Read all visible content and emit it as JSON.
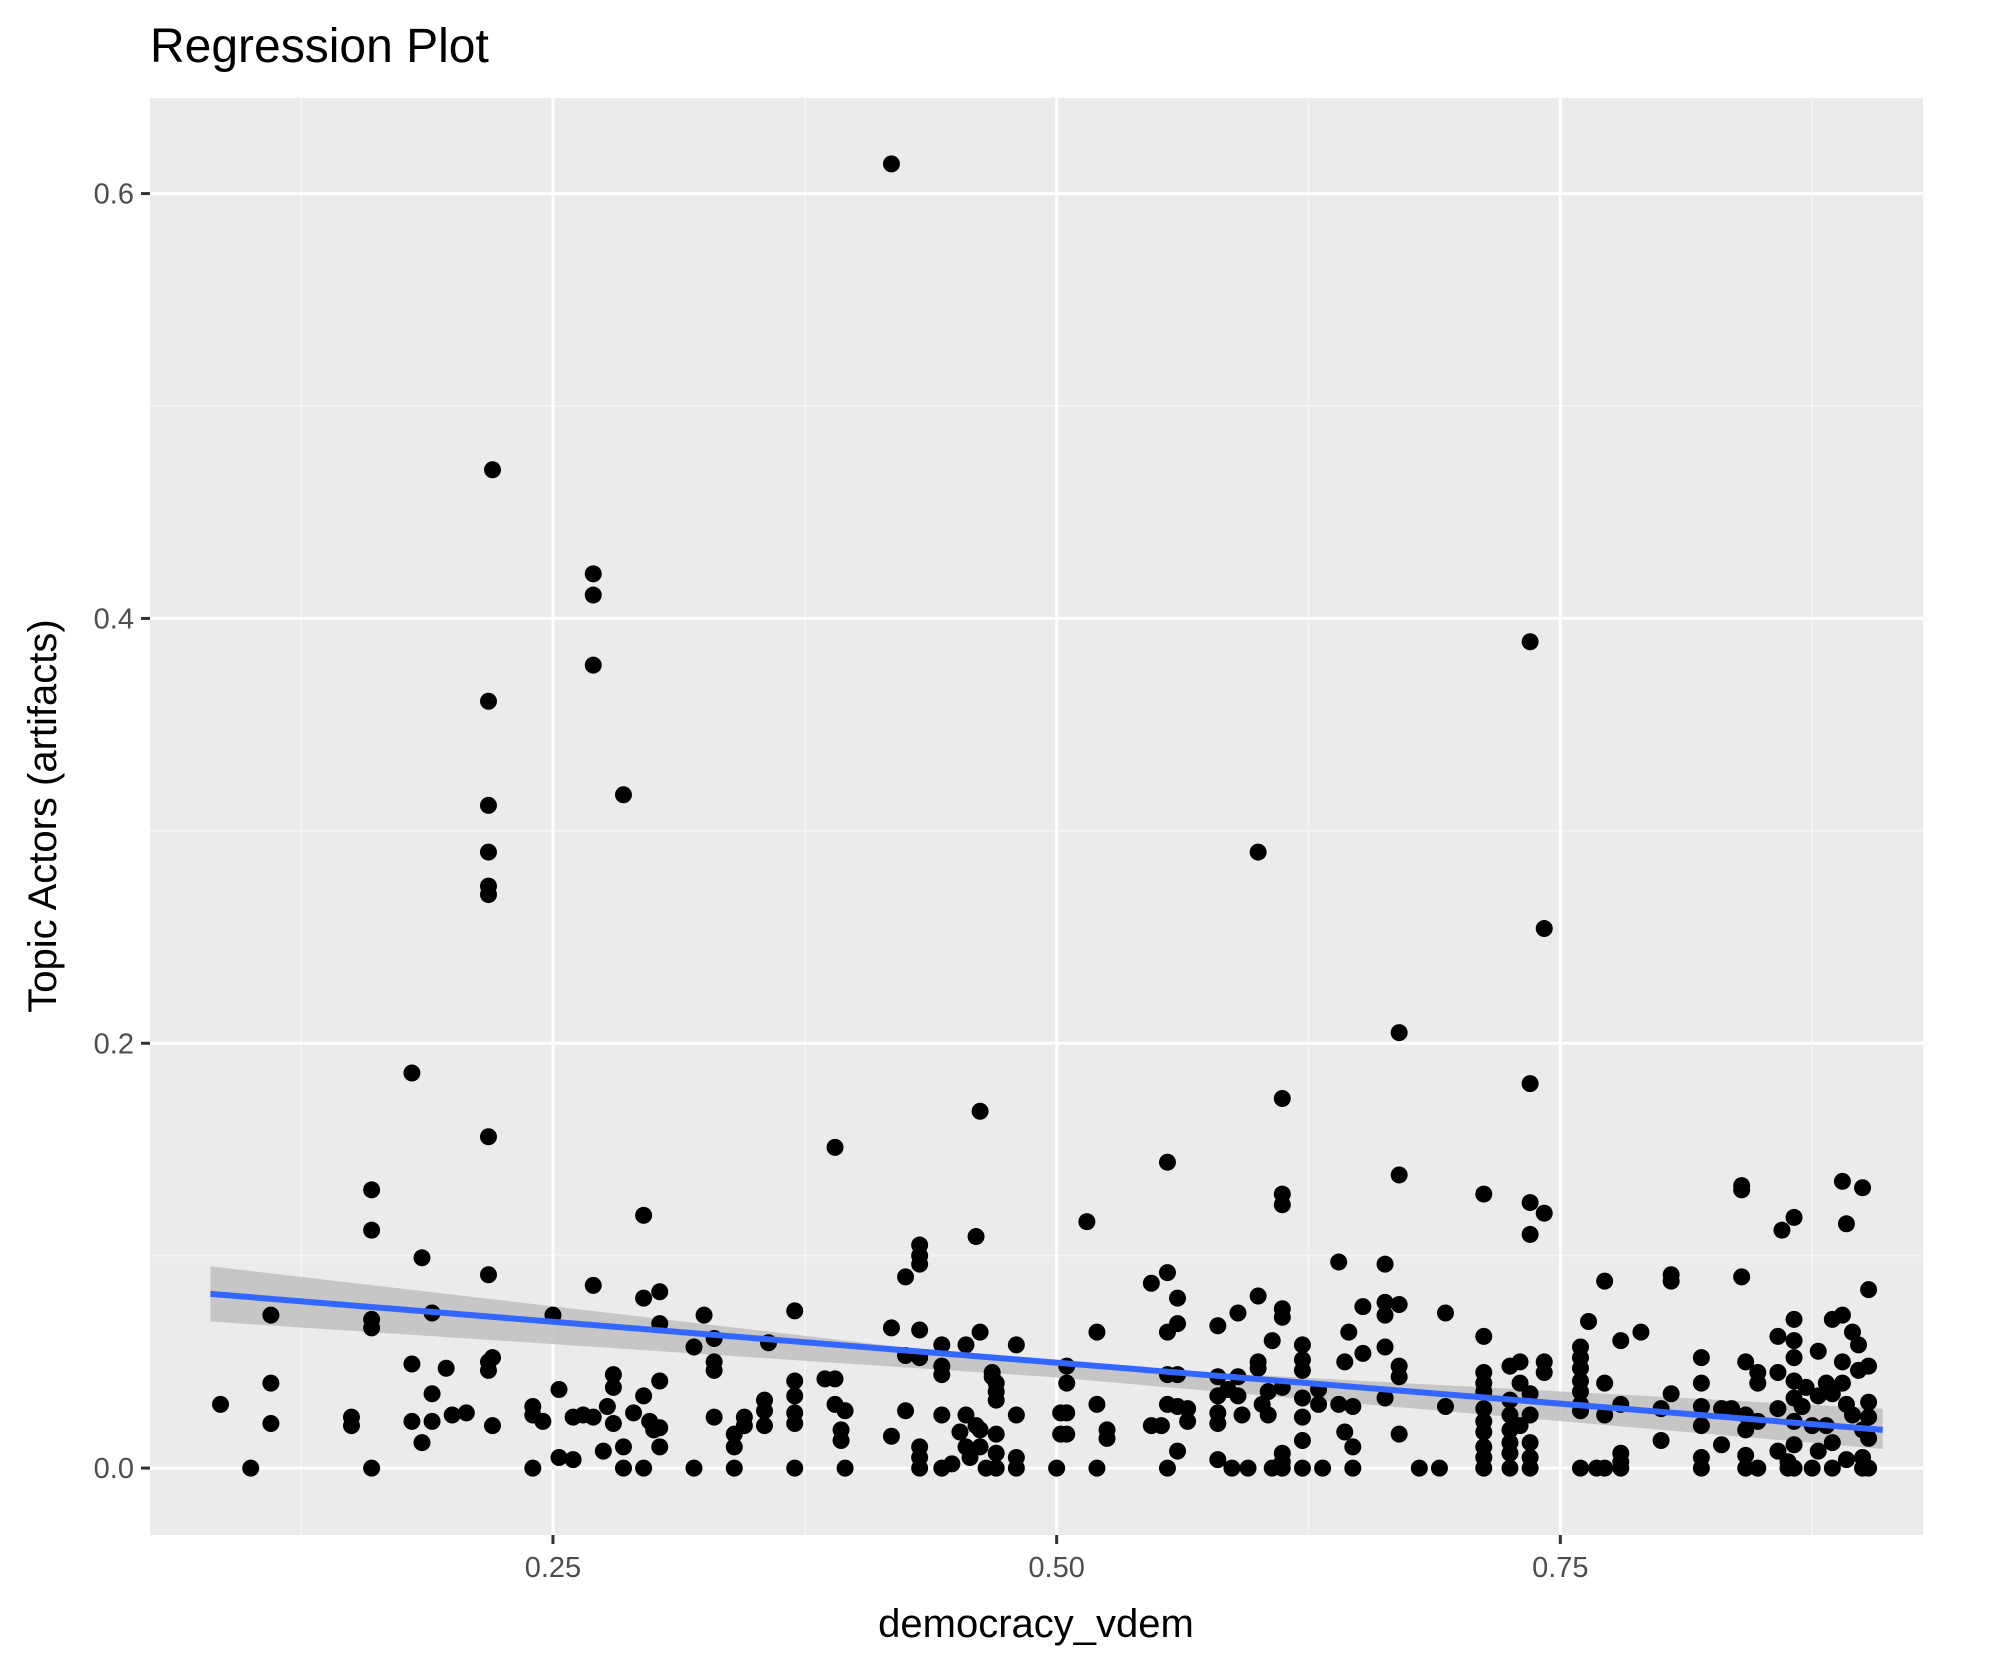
{
  "chart_data": {
    "type": "scatter",
    "title": "Regression Plot",
    "xlabel": "democracy_vdem",
    "ylabel": "Topic Actors (artifacts)",
    "xlim": [
      0.05,
      0.93
    ],
    "ylim": [
      -0.0315,
      0.645
    ],
    "x_ticks": [
      0.25,
      0.5,
      0.75
    ],
    "x_tick_labels": [
      "0.25",
      "0.50",
      "0.75"
    ],
    "x_minor_ticks": [
      0.125,
      0.375,
      0.625,
      0.875
    ],
    "y_ticks": [
      0.0,
      0.2,
      0.4,
      0.6
    ],
    "y_tick_labels": [
      "0.0",
      "0.2",
      "0.4",
      "0.6"
    ],
    "y_minor_ticks": [
      0.1,
      0.3,
      0.5
    ],
    "grid": true,
    "colors": {
      "panel_background": "#ebebeb",
      "grid_major": "#ffffff",
      "grid_minor": "#f5f5f5",
      "points": "#000000",
      "regression_line": "#3366ff",
      "confidence_band": "#c0c0c0"
    },
    "regression": {
      "x_start": 0.08,
      "y_start": 0.082,
      "x_end": 0.91,
      "y_end": 0.018,
      "ci_start": [
        0.069,
        0.095
      ],
      "ci_mid": [
        0.043,
        0.049
      ],
      "ci_end": [
        0.009,
        0.028
      ]
    },
    "points": [
      [
        0.085,
        0.03
      ],
      [
        0.1,
        0.0
      ],
      [
        0.11,
        0.072
      ],
      [
        0.11,
        0.04
      ],
      [
        0.11,
        0.021
      ],
      [
        0.15,
        0.024
      ],
      [
        0.15,
        0.02
      ],
      [
        0.16,
        0.131
      ],
      [
        0.16,
        0.112
      ],
      [
        0.16,
        0.07
      ],
      [
        0.16,
        0.066
      ],
      [
        0.16,
        0.0
      ],
      [
        0.18,
        0.186
      ],
      [
        0.18,
        0.049
      ],
      [
        0.18,
        0.022
      ],
      [
        0.185,
        0.099
      ],
      [
        0.185,
        0.012
      ],
      [
        0.19,
        0.073
      ],
      [
        0.19,
        0.035
      ],
      [
        0.19,
        0.022
      ],
      [
        0.197,
        0.047
      ],
      [
        0.2,
        0.025
      ],
      [
        0.207,
        0.026
      ],
      [
        0.22,
        0.47
      ],
      [
        0.218,
        0.361
      ],
      [
        0.218,
        0.312
      ],
      [
        0.218,
        0.29
      ],
      [
        0.218,
        0.274
      ],
      [
        0.218,
        0.27
      ],
      [
        0.218,
        0.156
      ],
      [
        0.218,
        0.091
      ],
      [
        0.218,
        0.05
      ],
      [
        0.218,
        0.046
      ],
      [
        0.22,
        0.052
      ],
      [
        0.22,
        0.02
      ],
      [
        0.24,
        0.0
      ],
      [
        0.24,
        0.029
      ],
      [
        0.24,
        0.025
      ],
      [
        0.245,
        0.022
      ],
      [
        0.25,
        0.072
      ],
      [
        0.253,
        0.037
      ],
      [
        0.253,
        0.005
      ],
      [
        0.26,
        0.024
      ],
      [
        0.26,
        0.004
      ],
      [
        0.265,
        0.025
      ],
      [
        0.27,
        0.421
      ],
      [
        0.27,
        0.411
      ],
      [
        0.27,
        0.378
      ],
      [
        0.27,
        0.086
      ],
      [
        0.27,
        0.024
      ],
      [
        0.275,
        0.008
      ],
      [
        0.277,
        0.029
      ],
      [
        0.28,
        0.044
      ],
      [
        0.28,
        0.038
      ],
      [
        0.28,
        0.021
      ],
      [
        0.285,
        0.317
      ],
      [
        0.285,
        0.01
      ],
      [
        0.285,
        0.0
      ],
      [
        0.29,
        0.026
      ],
      [
        0.295,
        0.119
      ],
      [
        0.295,
        0.08
      ],
      [
        0.295,
        0.034
      ],
      [
        0.295,
        0.0
      ],
      [
        0.298,
        0.022
      ],
      [
        0.3,
        0.018
      ],
      [
        0.303,
        0.083
      ],
      [
        0.303,
        0.068
      ],
      [
        0.303,
        0.041
      ],
      [
        0.303,
        0.019
      ],
      [
        0.303,
        0.01
      ],
      [
        0.32,
        0.057
      ],
      [
        0.32,
        0.0
      ],
      [
        0.325,
        0.072
      ],
      [
        0.33,
        0.061
      ],
      [
        0.33,
        0.05
      ],
      [
        0.33,
        0.046
      ],
      [
        0.33,
        0.024
      ],
      [
        0.34,
        0.016
      ],
      [
        0.34,
        0.01
      ],
      [
        0.34,
        0.0
      ],
      [
        0.345,
        0.024
      ],
      [
        0.345,
        0.02
      ],
      [
        0.355,
        0.032
      ],
      [
        0.355,
        0.027
      ],
      [
        0.355,
        0.02
      ],
      [
        0.357,
        0.059
      ],
      [
        0.37,
        0.074
      ],
      [
        0.37,
        0.041
      ],
      [
        0.37,
        0.034
      ],
      [
        0.37,
        0.026
      ],
      [
        0.37,
        0.021
      ],
      [
        0.37,
        0.0
      ],
      [
        0.385,
        0.042
      ],
      [
        0.39,
        0.151
      ],
      [
        0.39,
        0.042
      ],
      [
        0.39,
        0.03
      ],
      [
        0.393,
        0.018
      ],
      [
        0.393,
        0.013
      ],
      [
        0.395,
        0.027
      ],
      [
        0.395,
        0.0
      ],
      [
        0.418,
        0.614
      ],
      [
        0.418,
        0.066
      ],
      [
        0.418,
        0.015
      ],
      [
        0.425,
        0.09
      ],
      [
        0.425,
        0.053
      ],
      [
        0.425,
        0.027
      ],
      [
        0.432,
        0.105
      ],
      [
        0.432,
        0.1
      ],
      [
        0.432,
        0.096
      ],
      [
        0.432,
        0.065
      ],
      [
        0.432,
        0.052
      ],
      [
        0.432,
        0.01
      ],
      [
        0.432,
        0.005
      ],
      [
        0.432,
        0.0
      ],
      [
        0.443,
        0.058
      ],
      [
        0.443,
        0.048
      ],
      [
        0.443,
        0.044
      ],
      [
        0.443,
        0.025
      ],
      [
        0.443,
        0.0
      ],
      [
        0.448,
        0.002
      ],
      [
        0.452,
        0.017
      ],
      [
        0.455,
        0.058
      ],
      [
        0.455,
        0.025
      ],
      [
        0.455,
        0.01
      ],
      [
        0.457,
        0.005
      ],
      [
        0.46,
        0.109
      ],
      [
        0.46,
        0.02
      ],
      [
        0.462,
        0.168
      ],
      [
        0.462,
        0.064
      ],
      [
        0.462,
        0.018
      ],
      [
        0.462,
        0.01
      ],
      [
        0.465,
        0.0
      ],
      [
        0.468,
        0.045
      ],
      [
        0.468,
        0.043
      ],
      [
        0.47,
        0.04
      ],
      [
        0.47,
        0.036
      ],
      [
        0.47,
        0.032
      ],
      [
        0.47,
        0.016
      ],
      [
        0.47,
        0.007
      ],
      [
        0.47,
        0.0
      ],
      [
        0.48,
        0.058
      ],
      [
        0.48,
        0.025
      ],
      [
        0.48,
        0.005
      ],
      [
        0.48,
        0.0
      ],
      [
        0.5,
        0.0
      ],
      [
        0.502,
        0.026
      ],
      [
        0.502,
        0.016
      ],
      [
        0.505,
        0.048
      ],
      [
        0.505,
        0.04
      ],
      [
        0.505,
        0.026
      ],
      [
        0.505,
        0.016
      ],
      [
        0.515,
        0.116
      ],
      [
        0.52,
        0.064
      ],
      [
        0.52,
        0.03
      ],
      [
        0.52,
        0.0
      ],
      [
        0.525,
        0.018
      ],
      [
        0.525,
        0.014
      ],
      [
        0.547,
        0.087
      ],
      [
        0.547,
        0.02
      ],
      [
        0.552,
        0.02
      ],
      [
        0.555,
        0.144
      ],
      [
        0.555,
        0.092
      ],
      [
        0.555,
        0.064
      ],
      [
        0.555,
        0.044
      ],
      [
        0.555,
        0.03
      ],
      [
        0.555,
        0.0
      ],
      [
        0.56,
        0.08
      ],
      [
        0.56,
        0.068
      ],
      [
        0.56,
        0.044
      ],
      [
        0.56,
        0.029
      ],
      [
        0.56,
        0.008
      ],
      [
        0.565,
        0.022
      ],
      [
        0.565,
        0.028
      ],
      [
        0.58,
        0.067
      ],
      [
        0.58,
        0.043
      ],
      [
        0.58,
        0.034
      ],
      [
        0.58,
        0.026
      ],
      [
        0.58,
        0.021
      ],
      [
        0.58,
        0.004
      ],
      [
        0.585,
        0.037
      ],
      [
        0.587,
        0.0
      ],
      [
        0.59,
        0.073
      ],
      [
        0.59,
        0.043
      ],
      [
        0.59,
        0.034
      ],
      [
        0.592,
        0.025
      ],
      [
        0.595,
        0.0
      ],
      [
        0.6,
        0.29
      ],
      [
        0.6,
        0.081
      ],
      [
        0.6,
        0.05
      ],
      [
        0.6,
        0.047
      ],
      [
        0.602,
        0.03
      ],
      [
        0.605,
        0.036
      ],
      [
        0.605,
        0.025
      ],
      [
        0.607,
        0.06
      ],
      [
        0.607,
        0.0
      ],
      [
        0.612,
        0.174
      ],
      [
        0.612,
        0.129
      ],
      [
        0.612,
        0.124
      ],
      [
        0.612,
        0.075
      ],
      [
        0.612,
        0.071
      ],
      [
        0.612,
        0.038
      ],
      [
        0.612,
        0.007
      ],
      [
        0.612,
        0.003
      ],
      [
        0.612,
        0.0
      ],
      [
        0.622,
        0.058
      ],
      [
        0.622,
        0.051
      ],
      [
        0.622,
        0.046
      ],
      [
        0.622,
        0.033
      ],
      [
        0.622,
        0.024
      ],
      [
        0.622,
        0.013
      ],
      [
        0.622,
        0.0
      ],
      [
        0.63,
        0.037
      ],
      [
        0.63,
        0.03
      ],
      [
        0.632,
        0.0
      ],
      [
        0.64,
        0.097
      ],
      [
        0.64,
        0.03
      ],
      [
        0.643,
        0.05
      ],
      [
        0.643,
        0.017
      ],
      [
        0.645,
        0.064
      ],
      [
        0.647,
        0.029
      ],
      [
        0.647,
        0.01
      ],
      [
        0.647,
        0.0
      ],
      [
        0.652,
        0.076
      ],
      [
        0.652,
        0.054
      ],
      [
        0.663,
        0.096
      ],
      [
        0.663,
        0.078
      ],
      [
        0.663,
        0.072
      ],
      [
        0.663,
        0.057
      ],
      [
        0.663,
        0.033
      ],
      [
        0.67,
        0.205
      ],
      [
        0.67,
        0.138
      ],
      [
        0.67,
        0.077
      ],
      [
        0.67,
        0.048
      ],
      [
        0.67,
        0.043
      ],
      [
        0.67,
        0.016
      ],
      [
        0.68,
        0.0
      ],
      [
        0.69,
        0.0
      ],
      [
        0.693,
        0.073
      ],
      [
        0.693,
        0.029
      ],
      [
        0.712,
        0.129
      ],
      [
        0.712,
        0.062
      ],
      [
        0.712,
        0.045
      ],
      [
        0.712,
        0.04
      ],
      [
        0.712,
        0.036
      ],
      [
        0.712,
        0.028
      ],
      [
        0.712,
        0.022
      ],
      [
        0.712,
        0.017
      ],
      [
        0.712,
        0.01
      ],
      [
        0.712,
        0.005
      ],
      [
        0.712,
        0.0
      ],
      [
        0.725,
        0.048
      ],
      [
        0.725,
        0.032
      ],
      [
        0.725,
        0.025
      ],
      [
        0.725,
        0.018
      ],
      [
        0.725,
        0.012
      ],
      [
        0.725,
        0.007
      ],
      [
        0.725,
        0.0
      ],
      [
        0.73,
        0.05
      ],
      [
        0.73,
        0.04
      ],
      [
        0.73,
        0.02
      ],
      [
        0.735,
        0.389
      ],
      [
        0.735,
        0.181
      ],
      [
        0.735,
        0.125
      ],
      [
        0.735,
        0.11
      ],
      [
        0.735,
        0.035
      ],
      [
        0.735,
        0.025
      ],
      [
        0.735,
        0.012
      ],
      [
        0.735,
        0.005
      ],
      [
        0.735,
        0.0
      ],
      [
        0.742,
        0.254
      ],
      [
        0.742,
        0.12
      ],
      [
        0.742,
        0.05
      ],
      [
        0.742,
        0.045
      ],
      [
        0.76,
        0.057
      ],
      [
        0.76,
        0.052
      ],
      [
        0.76,
        0.047
      ],
      [
        0.76,
        0.041
      ],
      [
        0.76,
        0.036
      ],
      [
        0.76,
        0.03
      ],
      [
        0.76,
        0.027
      ],
      [
        0.76,
        0.0
      ],
      [
        0.764,
        0.069
      ],
      [
        0.768,
        0.0
      ],
      [
        0.772,
        0.088
      ],
      [
        0.772,
        0.04
      ],
      [
        0.772,
        0.025
      ],
      [
        0.772,
        0.0
      ],
      [
        0.78,
        0.06
      ],
      [
        0.78,
        0.03
      ],
      [
        0.78,
        0.007
      ],
      [
        0.78,
        0.003
      ],
      [
        0.78,
        0.0
      ],
      [
        0.79,
        0.064
      ],
      [
        0.8,
        0.028
      ],
      [
        0.8,
        0.013
      ],
      [
        0.805,
        0.091
      ],
      [
        0.805,
        0.088
      ],
      [
        0.805,
        0.035
      ],
      [
        0.82,
        0.052
      ],
      [
        0.82,
        0.04
      ],
      [
        0.82,
        0.029
      ],
      [
        0.82,
        0.02
      ],
      [
        0.82,
        0.005
      ],
      [
        0.82,
        0.0
      ],
      [
        0.83,
        0.028
      ],
      [
        0.83,
        0.011
      ],
      [
        0.835,
        0.028
      ],
      [
        0.84,
        0.131
      ],
      [
        0.84,
        0.133
      ],
      [
        0.84,
        0.09
      ],
      [
        0.842,
        0.05
      ],
      [
        0.842,
        0.025
      ],
      [
        0.842,
        0.018
      ],
      [
        0.842,
        0.006
      ],
      [
        0.842,
        0.0
      ],
      [
        0.848,
        0.045
      ],
      [
        0.848,
        0.04
      ],
      [
        0.848,
        0.022
      ],
      [
        0.848,
        0.0
      ],
      [
        0.858,
        0.062
      ],
      [
        0.858,
        0.045
      ],
      [
        0.858,
        0.028
      ],
      [
        0.858,
        0.008
      ],
      [
        0.86,
        0.112
      ],
      [
        0.863,
        0.003
      ],
      [
        0.863,
        0.0
      ],
      [
        0.866,
        0.118
      ],
      [
        0.866,
        0.07
      ],
      [
        0.866,
        0.06
      ],
      [
        0.866,
        0.052
      ],
      [
        0.866,
        0.041
      ],
      [
        0.866,
        0.033
      ],
      [
        0.866,
        0.022
      ],
      [
        0.866,
        0.011
      ],
      [
        0.866,
        0.0
      ],
      [
        0.87,
        0.029
      ],
      [
        0.872,
        0.038
      ],
      [
        0.875,
        0.02
      ],
      [
        0.875,
        0.0
      ],
      [
        0.878,
        0.055
      ],
      [
        0.878,
        0.034
      ],
      [
        0.878,
        0.008
      ],
      [
        0.882,
        0.04
      ],
      [
        0.882,
        0.02
      ],
      [
        0.885,
        0.07
      ],
      [
        0.885,
        0.035
      ],
      [
        0.885,
        0.012
      ],
      [
        0.885,
        0.0
      ],
      [
        0.89,
        0.135
      ],
      [
        0.89,
        0.072
      ],
      [
        0.89,
        0.05
      ],
      [
        0.89,
        0.04
      ],
      [
        0.892,
        0.115
      ],
      [
        0.892,
        0.03
      ],
      [
        0.892,
        0.004
      ],
      [
        0.895,
        0.064
      ],
      [
        0.895,
        0.025
      ],
      [
        0.898,
        0.058
      ],
      [
        0.898,
        0.046
      ],
      [
        0.9,
        0.132
      ],
      [
        0.9,
        0.018
      ],
      [
        0.9,
        0.005
      ],
      [
        0.9,
        0.0
      ],
      [
        0.903,
        0.084
      ],
      [
        0.903,
        0.048
      ],
      [
        0.903,
        0.031
      ],
      [
        0.903,
        0.024
      ],
      [
        0.903,
        0.014
      ],
      [
        0.903,
        0.0
      ]
    ]
  }
}
